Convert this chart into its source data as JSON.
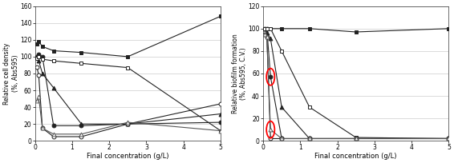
{
  "left": {
    "ylabel": "Relative cell density\n(%, Abs595)",
    "ylim": [
      0,
      160
    ],
    "yticks": [
      0,
      20,
      40,
      60,
      80,
      100,
      120,
      140,
      160
    ],
    "series": [
      {
        "marker": "s",
        "fillstyle": "full",
        "x": [
          0.05,
          0.1,
          0.2,
          0.5,
          1.25,
          2.5,
          5.0
        ],
        "y": [
          115,
          118,
          112,
          107,
          105,
          100,
          148
        ]
      },
      {
        "marker": "o",
        "fillstyle": "full",
        "x": [
          0.05,
          0.1,
          0.2,
          0.5,
          1.25,
          2.5,
          5.0
        ],
        "y": [
          100,
          103,
          100,
          18,
          18,
          20,
          22
        ]
      },
      {
        "marker": "^",
        "fillstyle": "full",
        "x": [
          0.05,
          0.1,
          0.2,
          0.5,
          1.25,
          2.5,
          5.0
        ],
        "y": [
          100,
          95,
          80,
          63,
          20,
          20,
          32
        ]
      },
      {
        "marker": "s",
        "fillstyle": "none",
        "x": [
          0.05,
          0.1,
          0.2,
          0.5,
          1.25,
          2.5,
          5.0
        ],
        "y": [
          98,
          100,
          97,
          95,
          92,
          87,
          12
        ]
      },
      {
        "marker": "o",
        "fillstyle": "none",
        "x": [
          0.05,
          0.1,
          0.2,
          0.5,
          1.25,
          2.5,
          5.0
        ],
        "y": [
          88,
          78,
          15,
          5,
          5,
          20,
          44
        ]
      },
      {
        "marker": "^",
        "fillstyle": "none",
        "x": [
          0.05,
          0.1,
          0.2,
          0.5,
          1.25,
          2.5,
          5.0
        ],
        "y": [
          48,
          52,
          15,
          8,
          8,
          22,
          12
        ]
      }
    ]
  },
  "right": {
    "ylabel": "Relative biofilm formation\n(%, Abs595, C.V.)",
    "ylim": [
      0,
      120
    ],
    "yticks": [
      0,
      20,
      40,
      60,
      80,
      100,
      120
    ],
    "series": [
      {
        "marker": "s",
        "fillstyle": "full",
        "x": [
          0.05,
          0.1,
          0.2,
          0.5,
          1.25,
          2.5,
          5.0
        ],
        "y": [
          100,
          100,
          100,
          100,
          100,
          97,
          100
        ]
      },
      {
        "marker": "o",
        "fillstyle": "full",
        "x": [
          0.05,
          0.1,
          0.2,
          0.5,
          1.25,
          2.5,
          5.0
        ],
        "y": [
          100,
          100,
          57,
          2,
          2,
          2,
          2
        ]
      },
      {
        "marker": "^",
        "fillstyle": "full",
        "x": [
          0.05,
          0.1,
          0.2,
          0.5,
          1.25,
          2.5,
          5.0
        ],
        "y": [
          100,
          96,
          91,
          30,
          2,
          2,
          2
        ]
      },
      {
        "marker": "s",
        "fillstyle": "none",
        "x": [
          0.05,
          0.1,
          0.2,
          0.5,
          1.25,
          2.5,
          5.0
        ],
        "y": [
          100,
          100,
          100,
          80,
          30,
          3,
          2
        ]
      },
      {
        "marker": "o",
        "fillstyle": "none",
        "x": [
          0.05,
          0.1,
          0.2,
          0.5,
          1.25,
          2.5,
          5.0
        ],
        "y": [
          95,
          93,
          2,
          2,
          2,
          2,
          2
        ]
      },
      {
        "marker": "^",
        "fillstyle": "none",
        "x": [
          0.05,
          0.1,
          0.2,
          0.5,
          1.25,
          2.5,
          5.0
        ],
        "y": [
          95,
          93,
          10,
          2,
          2,
          2,
          2
        ]
      }
    ],
    "circles": [
      {
        "series_idx": 1,
        "x_idx": 2
      },
      {
        "series_idx": 5,
        "x_idx": 2
      }
    ]
  },
  "xlabel": "Final concentration (g/L)",
  "xlim": [
    0,
    5
  ],
  "xticks": [
    0,
    1,
    2,
    3,
    4,
    5
  ],
  "dark_color": "#222222",
  "mid_color": "#555555",
  "light_color": "#999999",
  "bg_color": "#ffffff",
  "figsize": [
    5.66,
    2.04
  ],
  "dpi": 100
}
